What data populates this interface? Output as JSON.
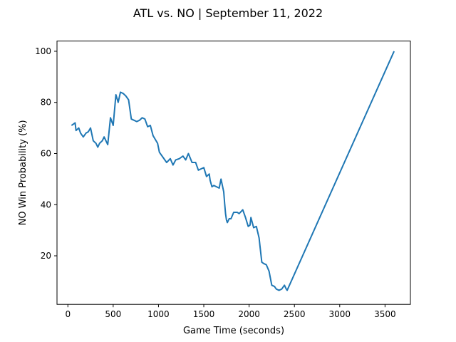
{
  "chart_data": {
    "type": "line",
    "title": "ATL vs. NO | September 11, 2022",
    "xlabel": "Game Time (seconds)",
    "ylabel": "NO Win Probability (%)",
    "xlim": [
      -120,
      3780
    ],
    "ylim": [
      1,
      104
    ],
    "xticks": [
      0,
      500,
      1000,
      1500,
      2000,
      2500,
      3000,
      3500
    ],
    "yticks": [
      20,
      40,
      60,
      80,
      100
    ],
    "grid": false,
    "line_color": "#1f77b4",
    "series": [
      {
        "x": [
          40,
          80,
          90,
          120,
          140,
          170,
          200,
          225,
          250,
          280,
          310,
          330,
          350,
          380,
          400,
          440,
          470,
          500,
          530,
          555,
          580,
          610,
          640,
          670,
          700,
          730,
          760,
          790,
          820,
          850,
          880,
          910,
          940,
          990,
          1010,
          1050,
          1090,
          1130,
          1160,
          1190,
          1230,
          1270,
          1300,
          1330,
          1370,
          1380,
          1410,
          1440,
          1470,
          1500,
          1530,
          1560,
          1570,
          1590,
          1610,
          1640,
          1670,
          1690,
          1720,
          1730,
          1740,
          1750,
          1760,
          1780,
          1800,
          1830,
          1870,
          1890,
          1930,
          1960,
          1990,
          2010,
          2020,
          2050,
          2080,
          2110,
          2140,
          2160,
          2190,
          2220,
          2250,
          2280,
          2300,
          2330,
          2360,
          2380,
          2390,
          2410,
          2420,
          3600
        ],
        "y": [
          71,
          72,
          69,
          70,
          68,
          66.5,
          68,
          68.5,
          70,
          65,
          64,
          62.5,
          64,
          65,
          66.5,
          63.5,
          74,
          71,
          83,
          80,
          84,
          83.5,
          82.5,
          81,
          73.5,
          73,
          72.5,
          73,
          74,
          73.5,
          70.5,
          71,
          67,
          64,
          60.5,
          58.5,
          56.5,
          58,
          55.5,
          57.5,
          58,
          59,
          57.5,
          60,
          56.5,
          56.5,
          56.5,
          53.5,
          54,
          54.5,
          51,
          52,
          49.5,
          47,
          47.5,
          47,
          46.5,
          50,
          45,
          40.5,
          36.5,
          34,
          33,
          34.5,
          34.5,
          37,
          37,
          36.5,
          38,
          35,
          31.5,
          32,
          35,
          31,
          31.5,
          27,
          17.5,
          17,
          16.5,
          14,
          8.5,
          8,
          7,
          6.5,
          7,
          8,
          8.5,
          7,
          6.5,
          100
        ]
      }
    ]
  }
}
